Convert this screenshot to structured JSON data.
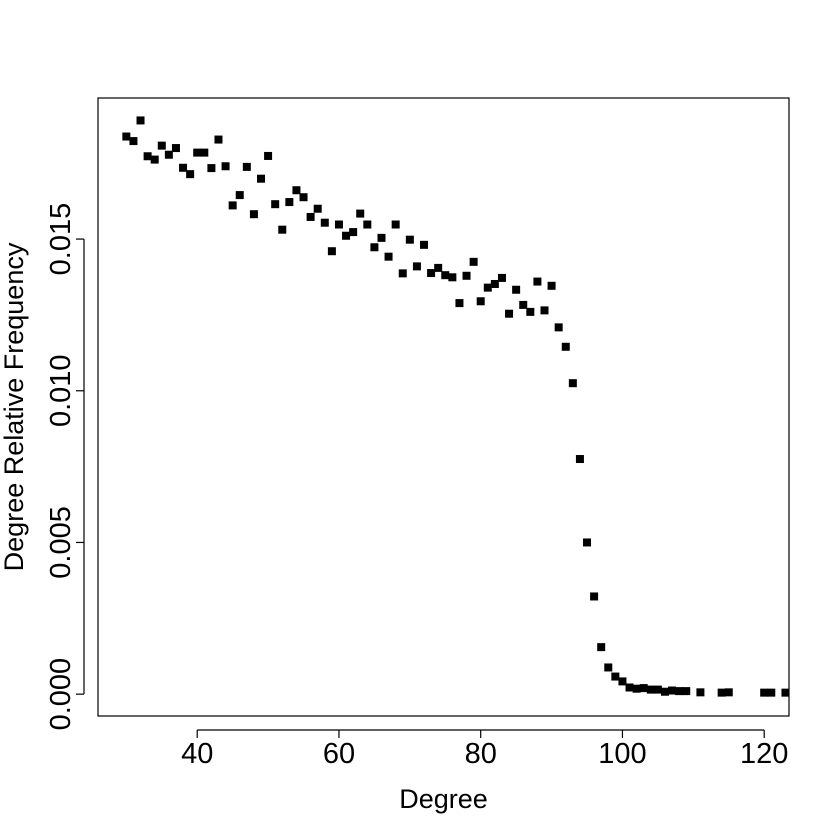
{
  "chart_data": {
    "type": "scatter",
    "title": "",
    "xlabel": "Degree",
    "ylabel": "Degree Relative Frequency",
    "xlim": [
      26,
      123.5
    ],
    "ylim": [
      -0.00072,
      0.01965
    ],
    "xticks": [
      40,
      60,
      80,
      100,
      120
    ],
    "yticks": [
      0.0,
      0.005,
      0.01,
      0.015
    ],
    "xtick_labels": [
      "40",
      "60",
      "80",
      "100",
      "120"
    ],
    "ytick_labels": [
      "0.000",
      "0.005",
      "0.010",
      "0.015"
    ],
    "grid": false,
    "legend": "none",
    "marker": "square",
    "color": "#000000",
    "x": [
      30,
      31,
      32,
      33,
      34,
      35,
      36,
      37,
      38,
      39,
      40,
      41,
      42,
      43,
      44,
      45,
      46,
      47,
      48,
      49,
      50,
      51,
      52,
      53,
      54,
      55,
      56,
      57,
      58,
      59,
      60,
      61,
      62,
      63,
      64,
      65,
      66,
      67,
      68,
      69,
      70,
      71,
      72,
      73,
      74,
      75,
      76,
      77,
      78,
      79,
      80,
      81,
      82,
      83,
      84,
      85,
      86,
      87,
      88,
      89,
      90,
      91,
      92,
      93,
      94,
      95,
      96,
      97,
      98,
      99,
      100,
      101,
      102,
      103,
      104,
      105,
      106,
      107,
      108,
      109,
      111,
      114,
      115,
      120,
      121,
      123
    ],
    "y": [
      0.01838,
      0.01823,
      0.01891,
      0.01773,
      0.01762,
      0.01808,
      0.01778,
      0.018,
      0.01735,
      0.01714,
      0.01785,
      0.01785,
      0.01734,
      0.01828,
      0.0174,
      0.01611,
      0.01645,
      0.01738,
      0.01582,
      0.01699,
      0.01774,
      0.01615,
      0.01531,
      0.01622,
      0.01661,
      0.01638,
      0.01573,
      0.016,
      0.01554,
      0.0146,
      0.01548,
      0.01511,
      0.01523,
      0.01584,
      0.01548,
      0.01473,
      0.01504,
      0.01442,
      0.01548,
      0.01387,
      0.01498,
      0.0141,
      0.01481,
      0.01388,
      0.01405,
      0.01381,
      0.01374,
      0.01289,
      0.01379,
      0.01425,
      0.01295,
      0.0134,
      0.01352,
      0.01372,
      0.01254,
      0.01333,
      0.01283,
      0.0126,
      0.0136,
      0.01265,
      0.01346,
      0.01209,
      0.01145,
      0.01025,
      0.00775,
      0.005,
      0.00322,
      0.00155,
      0.00088,
      0.00058,
      0.00042,
      0.00022,
      0.00018,
      0.0002,
      0.00015,
      0.00015,
      8e-05,
      0.00012,
      0.0001,
      0.0001,
      6e-05,
      5e-05,
      6e-05,
      5e-05,
      5e-05,
      5e-05
    ]
  }
}
